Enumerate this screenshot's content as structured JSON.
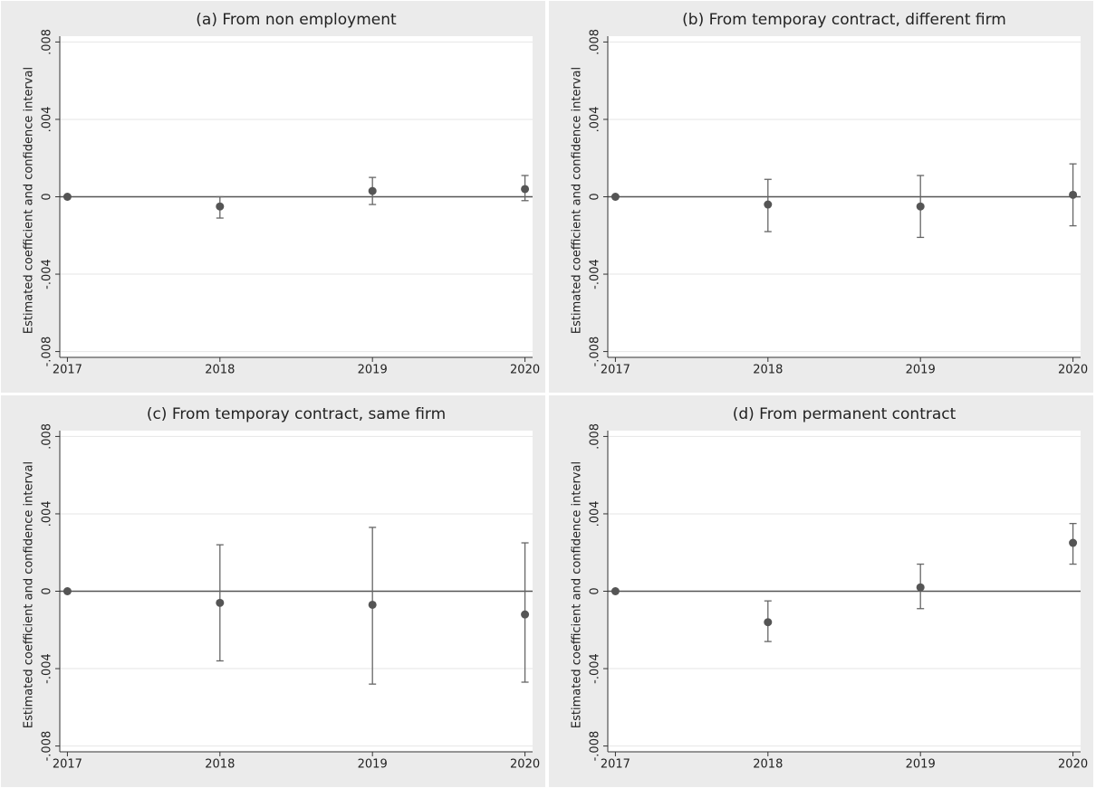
{
  "chart_data": [
    {
      "type": "errorbar",
      "title": "(a) From non employment",
      "y_label": "Estimated coefficient and confidence interval",
      "x": [
        2017,
        2018,
        2019,
        2020
      ],
      "values": [
        0,
        -0.0005,
        0.0003,
        0.0004
      ],
      "lower": [
        0,
        -0.0011,
        -0.0004,
        -0.0002
      ],
      "upper": [
        0,
        0.0,
        0.001,
        0.0011
      ],
      "color": "#555555",
      "hline": 0,
      "xlim": [
        2016.95,
        2020.05
      ],
      "xticks": [
        2017,
        2018,
        2019,
        2020
      ],
      "ylim": [
        -0.0083,
        0.0083
      ],
      "yticks": [
        {
          "value": -0.008,
          "label": "-.008"
        },
        {
          "value": -0.004,
          "label": "-.004"
        },
        0,
        {
          "value": 0.004,
          "label": ".004"
        },
        {
          "value": 0.008,
          "label": ".008"
        }
      ],
      "grid": true
    },
    {
      "type": "errorbar",
      "title": "(b) From temporay contract, different firm",
      "y_label": "Estimated coefficient and confidence interval",
      "x": [
        2017,
        2018,
        2019,
        2020
      ],
      "values": [
        0,
        -0.0004,
        -0.0005,
        0.0001
      ],
      "lower": [
        0,
        -0.0018,
        -0.0021,
        -0.0015
      ],
      "upper": [
        0,
        0.0009,
        0.0011,
        0.0017
      ],
      "color": "#555555",
      "hline": 0,
      "xlim": [
        2016.95,
        2020.05
      ],
      "xticks": [
        2017,
        2018,
        2019,
        2020
      ],
      "ylim": [
        -0.0083,
        0.0083
      ],
      "yticks": [
        {
          "value": -0.008,
          "label": "-.008"
        },
        {
          "value": -0.004,
          "label": "-.004"
        },
        0,
        {
          "value": 0.004,
          "label": ".004"
        },
        {
          "value": 0.008,
          "label": ".008"
        }
      ],
      "grid": true
    },
    {
      "type": "errorbar",
      "title": "(c) From temporay contract, same firm",
      "y_label": "Estimated coefficient and confidence interval",
      "x": [
        2017,
        2018,
        2019,
        2020
      ],
      "values": [
        0,
        -0.0006,
        -0.0007,
        -0.0012
      ],
      "lower": [
        0,
        -0.0036,
        -0.0048,
        -0.0047
      ],
      "upper": [
        0,
        0.0024,
        0.0033,
        0.0025
      ],
      "color": "#555555",
      "hline": 0,
      "xlim": [
        2016.95,
        2020.05
      ],
      "xticks": [
        2017,
        2018,
        2019,
        2020
      ],
      "ylim": [
        -0.0083,
        0.0083
      ],
      "yticks": [
        {
          "value": -0.008,
          "label": "-.008"
        },
        {
          "value": -0.004,
          "label": "-.004"
        },
        0,
        {
          "value": 0.004,
          "label": ".004"
        },
        {
          "value": 0.008,
          "label": ".008"
        }
      ],
      "grid": true
    },
    {
      "type": "errorbar",
      "title": "(d) From permanent contract",
      "y_label": "Estimated coefficient and confidence interval",
      "x": [
        2017,
        2018,
        2019,
        2020
      ],
      "values": [
        0,
        -0.0016,
        0.0002,
        0.0025
      ],
      "lower": [
        0,
        -0.0026,
        -0.0009,
        0.0014
      ],
      "upper": [
        0,
        -0.0005,
        0.0014,
        0.0035
      ],
      "color": "#555555",
      "hline": 0,
      "xlim": [
        2016.95,
        2020.05
      ],
      "xticks": [
        2017,
        2018,
        2019,
        2020
      ],
      "ylim": [
        -0.0083,
        0.0083
      ],
      "yticks": [
        {
          "value": -0.008,
          "label": "-.008"
        },
        {
          "value": -0.004,
          "label": "-.004"
        },
        0,
        {
          "value": 0.004,
          "label": ".004"
        },
        {
          "value": 0.008,
          "label": ".008"
        }
      ],
      "grid": true
    }
  ]
}
